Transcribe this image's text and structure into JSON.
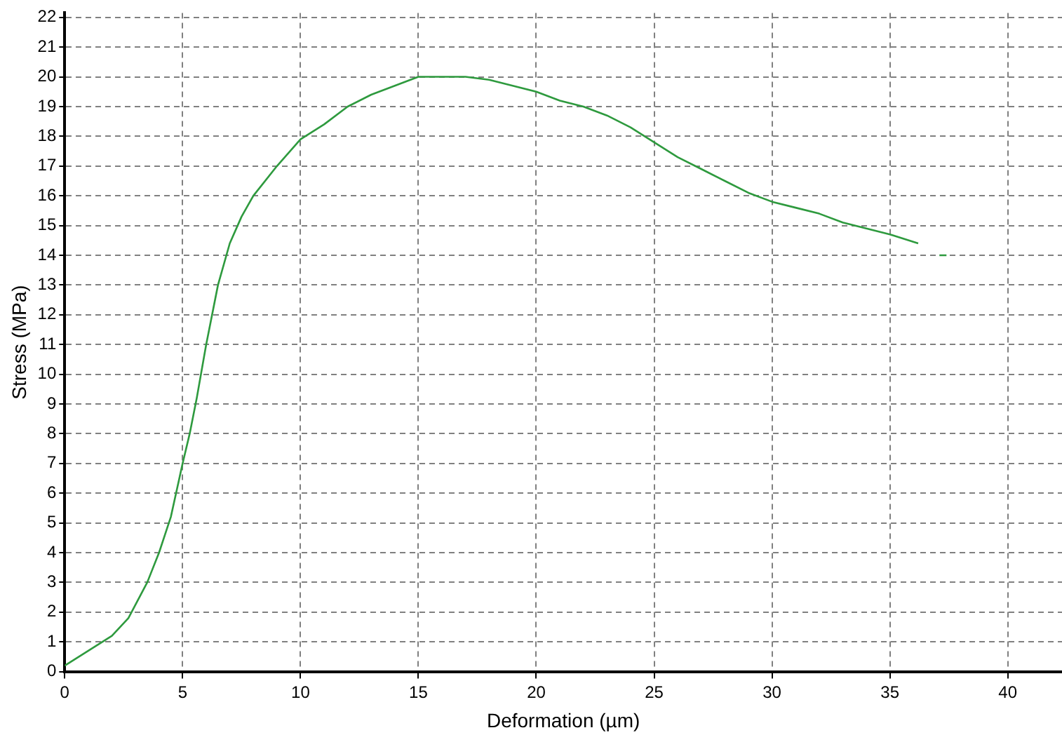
{
  "chart_data": {
    "type": "line",
    "xlabel": "Deformation (µm)",
    "ylabel": "Stress (MPa)",
    "series": [
      {
        "color": "#2e9a3e",
        "x": [
          0,
          1,
          2,
          2.7,
          3.5,
          4,
          4.5,
          5,
          5.3,
          5.6,
          6,
          6.5,
          7,
          7.5,
          8,
          9,
          10,
          11,
          12,
          13,
          14,
          15,
          16,
          17,
          18,
          19,
          20,
          21,
          22,
          23,
          24,
          25,
          26,
          27,
          28,
          29,
          30,
          31,
          32,
          33,
          34,
          35,
          36.2,
          36.7,
          37.1,
          37.4
        ],
        "values": [
          0.2,
          0.7,
          1.2,
          1.8,
          3,
          4,
          5.2,
          7,
          8,
          9.2,
          11,
          13,
          14.4,
          15.3,
          16,
          17,
          17.9,
          18.4,
          19,
          19.4,
          19.7,
          20,
          20,
          20,
          19.9,
          19.7,
          19.5,
          19.2,
          19,
          18.7,
          18.3,
          17.8,
          17.3,
          16.9,
          16.5,
          16.1,
          15.8,
          15.6,
          15.4,
          15.1,
          14.9,
          14.7,
          14.4,
          null,
          14,
          14
        ]
      }
    ],
    "xlim": [
      0,
      42.3
    ],
    "xticks": [
      0,
      5,
      10,
      15,
      20,
      25,
      30,
      35,
      40
    ],
    "ylim": [
      0,
      22.15
    ],
    "yticks": [
      0,
      1,
      2,
      3,
      4,
      5,
      6,
      7,
      8,
      9,
      10,
      11,
      12,
      13,
      14,
      15,
      16,
      17,
      18,
      19,
      20,
      21,
      22
    ],
    "grid": true,
    "marker": "none",
    "line_style": "solid",
    "legend": false
  }
}
